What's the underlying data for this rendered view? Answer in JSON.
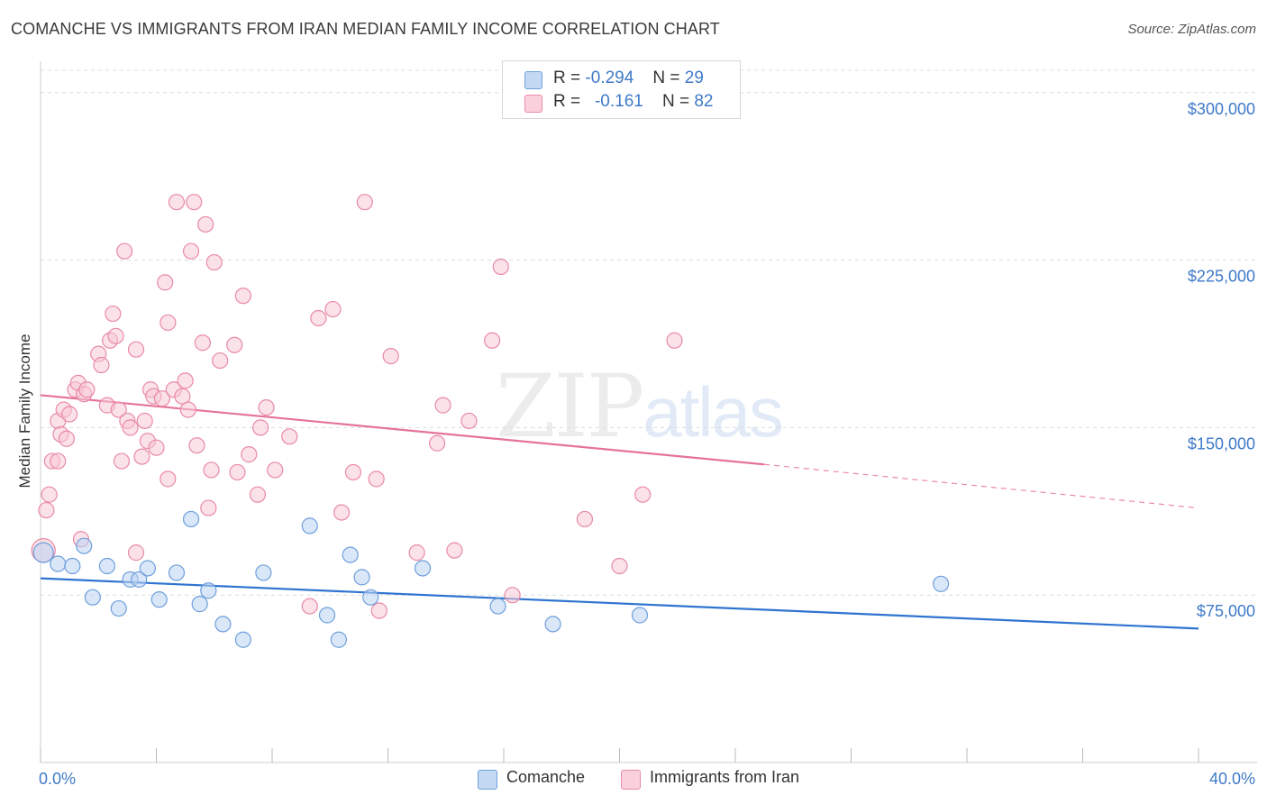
{
  "title": "COMANCHE VS IMMIGRANTS FROM IRAN MEDIAN FAMILY INCOME CORRELATION CHART",
  "source": "Source: ZipAtlas.com",
  "watermark": {
    "zip": "ZIP",
    "atlas": "atlas"
  },
  "legend": {
    "rows": [
      {
        "r_label": "R =",
        "r_value": "-0.294",
        "n_label": "N =",
        "n_value": "29",
        "color": "#a9c8ee"
      },
      {
        "r_label": "R =",
        "r_value": "-0.161",
        "n_label": "N =",
        "n_value": "82",
        "color": "#f5b5c8"
      }
    ]
  },
  "bottom_legend": [
    {
      "label": "Comanche",
      "color": "#a9c8ee"
    },
    {
      "label": "Immigrants from Iran",
      "color": "#f5b5c8"
    }
  ],
  "chart_data": {
    "type": "scatter",
    "title": "COMANCHE VS IMMIGRANTS FROM IRAN MEDIAN FAMILY INCOME CORRELATION CHART",
    "xlabel": "",
    "ylabel": "Median Family Income",
    "xlim": [
      0,
      40
    ],
    "ylim": [
      0,
      310000
    ],
    "x_tick_labels": [
      "0.0%",
      "40.0%"
    ],
    "y_ticks": [
      75000,
      150000,
      225000,
      300000
    ],
    "y_tick_labels": [
      "$75,000",
      "$150,000",
      "$225,000",
      "$300,000"
    ],
    "grid": true,
    "series": [
      {
        "name": "Comanche",
        "color": "#6f9fdc",
        "fill": "#b9d3f2",
        "points": [
          [
            0.1,
            94000
          ],
          [
            0.6,
            89000
          ],
          [
            1.1,
            88000
          ],
          [
            1.5,
            97000
          ],
          [
            1.8,
            74000
          ],
          [
            2.3,
            88000
          ],
          [
            2.7,
            69000
          ],
          [
            3.1,
            82000
          ],
          [
            3.4,
            82000
          ],
          [
            3.7,
            87000
          ],
          [
            4.1,
            73000
          ],
          [
            4.7,
            85000
          ],
          [
            5.2,
            109000
          ],
          [
            5.5,
            71000
          ],
          [
            5.8,
            77000
          ],
          [
            6.3,
            62000
          ],
          [
            7.0,
            55000
          ],
          [
            7.7,
            85000
          ],
          [
            9.3,
            106000
          ],
          [
            9.9,
            66000
          ],
          [
            10.3,
            55000
          ],
          [
            10.7,
            93000
          ],
          [
            11.1,
            83000
          ],
          [
            11.4,
            74000
          ],
          [
            13.2,
            87000
          ],
          [
            15.8,
            70000
          ],
          [
            17.7,
            62000
          ],
          [
            20.7,
            66000
          ],
          [
            31.1,
            80000
          ]
        ],
        "trend": {
          "x": [
            0,
            40
          ],
          "y": [
            82500,
            60000
          ]
        }
      },
      {
        "name": "Immigrants from Iran",
        "color": "#e98aa6",
        "fill": "#f8c9d6",
        "points": [
          [
            0.1,
            95000
          ],
          [
            0.2,
            113000
          ],
          [
            0.3,
            120000
          ],
          [
            0.4,
            135000
          ],
          [
            0.6,
            135000
          ],
          [
            0.6,
            153000
          ],
          [
            0.7,
            147000
          ],
          [
            0.8,
            158000
          ],
          [
            0.9,
            145000
          ],
          [
            1.0,
            156000
          ],
          [
            1.2,
            167000
          ],
          [
            1.3,
            170000
          ],
          [
            1.4,
            100000
          ],
          [
            1.5,
            165000
          ],
          [
            1.6,
            167000
          ],
          [
            2.0,
            183000
          ],
          [
            2.1,
            178000
          ],
          [
            2.3,
            160000
          ],
          [
            2.4,
            189000
          ],
          [
            2.5,
            201000
          ],
          [
            2.6,
            191000
          ],
          [
            2.7,
            158000
          ],
          [
            2.8,
            135000
          ],
          [
            2.9,
            229000
          ],
          [
            3.0,
            153000
          ],
          [
            3.1,
            150000
          ],
          [
            3.3,
            94000
          ],
          [
            3.3,
            185000
          ],
          [
            3.5,
            137000
          ],
          [
            3.6,
            153000
          ],
          [
            3.7,
            144000
          ],
          [
            3.8,
            167000
          ],
          [
            3.9,
            164000
          ],
          [
            4.0,
            141000
          ],
          [
            4.2,
            163000
          ],
          [
            4.3,
            215000
          ],
          [
            4.4,
            127000
          ],
          [
            4.4,
            197000
          ],
          [
            4.6,
            167000
          ],
          [
            4.7,
            251000
          ],
          [
            4.9,
            164000
          ],
          [
            5.0,
            171000
          ],
          [
            5.1,
            158000
          ],
          [
            5.2,
            229000
          ],
          [
            5.3,
            251000
          ],
          [
            5.4,
            142000
          ],
          [
            5.6,
            188000
          ],
          [
            5.7,
            241000
          ],
          [
            5.8,
            114000
          ],
          [
            5.9,
            131000
          ],
          [
            6.0,
            224000
          ],
          [
            6.2,
            180000
          ],
          [
            6.7,
            187000
          ],
          [
            6.8,
            130000
          ],
          [
            7.0,
            209000
          ],
          [
            7.2,
            138000
          ],
          [
            7.5,
            120000
          ],
          [
            7.6,
            150000
          ],
          [
            7.8,
            159000
          ],
          [
            8.1,
            131000
          ],
          [
            8.6,
            146000
          ],
          [
            9.3,
            70000
          ],
          [
            9.6,
            199000
          ],
          [
            10.1,
            203000
          ],
          [
            10.4,
            112000
          ],
          [
            10.8,
            130000
          ],
          [
            11.2,
            251000
          ],
          [
            11.6,
            127000
          ],
          [
            11.7,
            68000
          ],
          [
            12.1,
            182000
          ],
          [
            13.0,
            94000
          ],
          [
            13.7,
            143000
          ],
          [
            13.9,
            160000
          ],
          [
            14.3,
            95000
          ],
          [
            14.8,
            153000
          ],
          [
            15.6,
            189000
          ],
          [
            15.9,
            222000
          ],
          [
            16.3,
            75000
          ],
          [
            18.8,
            109000
          ],
          [
            20.0,
            88000
          ],
          [
            20.8,
            120000
          ],
          [
            21.9,
            189000
          ]
        ],
        "trend": {
          "x": [
            0,
            25
          ],
          "y": [
            164500,
            133500
          ]
        },
        "trend_dashed": {
          "x": [
            25,
            40
          ],
          "y": [
            133500,
            114000
          ]
        }
      }
    ]
  }
}
